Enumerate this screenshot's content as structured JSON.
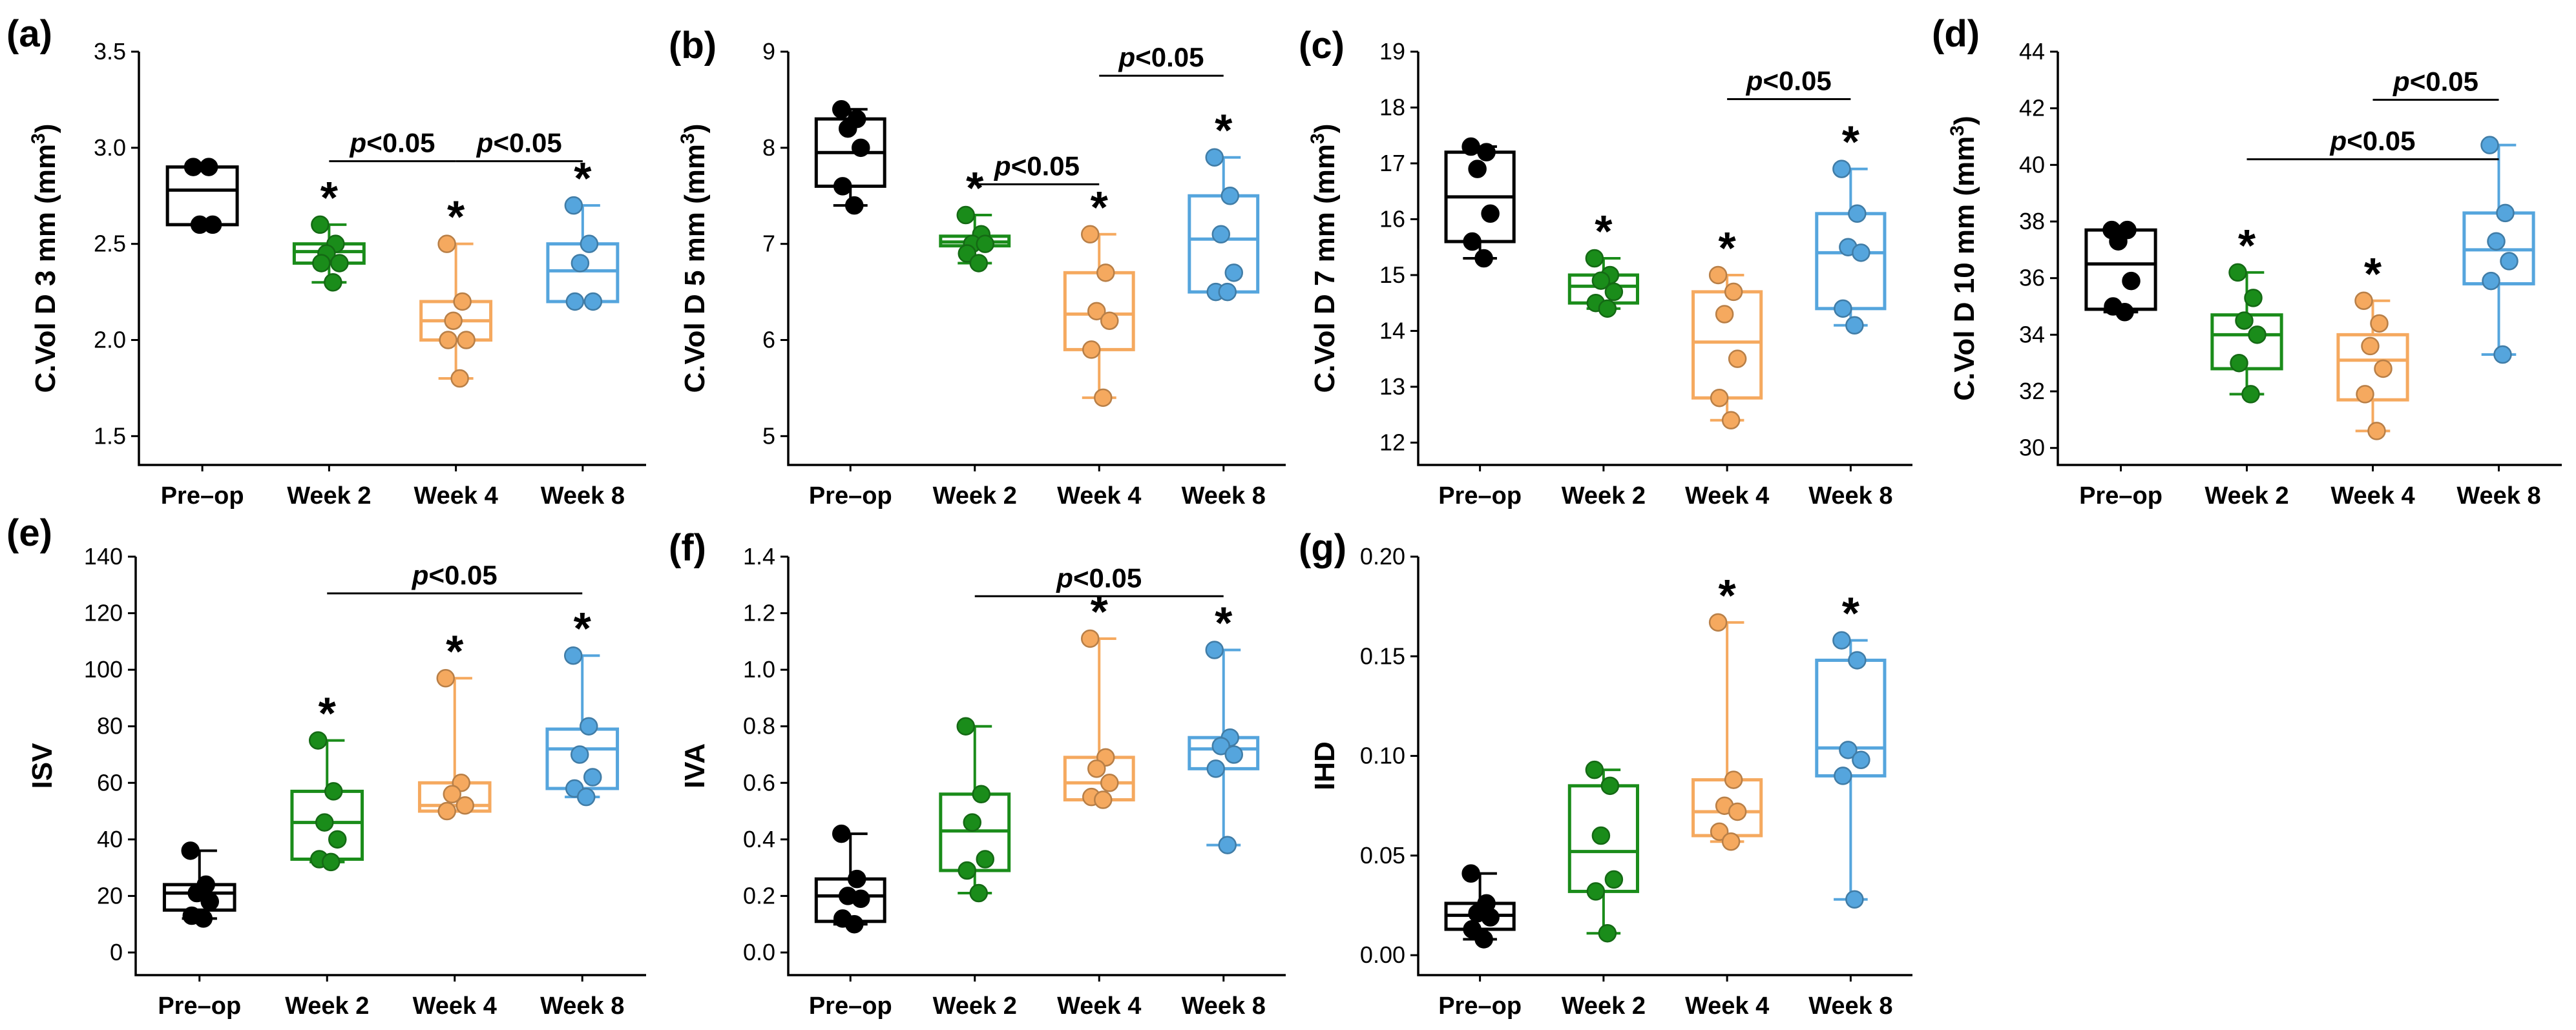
{
  "colors": {
    "Pre–op": "#000000",
    "Week 2": "#1a8c1a",
    "Week 4": "#f5a95f",
    "Week 8": "#55a5dd"
  },
  "chart_data": [
    {
      "id": "a",
      "panel_label": "(a)",
      "type": "box",
      "ylabel": "C.Vol D 3 mm (mm",
      "ylabel_sup": "3",
      "ylabel_end": ")",
      "ylim": [
        1.35,
        3.5
      ],
      "yticks": [
        "1.5",
        "2.0",
        "2.5",
        "3.0",
        "3.5"
      ],
      "categories": [
        "Pre–op",
        "Week 2",
        "Week 4",
        "Week 8"
      ],
      "series": [
        {
          "name": "Pre–op",
          "points": [
            2.9,
            2.9,
            2.6,
            2.6
          ],
          "q1": 2.6,
          "median": 2.78,
          "q3": 2.9,
          "min": 2.6,
          "max": 2.9,
          "star": ""
        },
        {
          "name": "Week 2",
          "points": [
            2.6,
            2.5,
            2.45,
            2.4,
            2.4,
            2.3
          ],
          "q1": 2.4,
          "median": 2.46,
          "q3": 2.5,
          "min": 2.3,
          "max": 2.6,
          "star": "*"
        },
        {
          "name": "Week 4",
          "points": [
            2.5,
            2.2,
            2.1,
            2.0,
            2.0,
            1.8
          ],
          "q1": 2.0,
          "median": 2.1,
          "q3": 2.2,
          "min": 1.8,
          "max": 2.5,
          "star": "*"
        },
        {
          "name": "Week 8",
          "points": [
            2.7,
            2.5,
            2.4,
            2.2,
            2.2
          ],
          "q1": 2.2,
          "median": 2.36,
          "q3": 2.5,
          "min": 2.2,
          "max": 2.7,
          "star": "*"
        }
      ],
      "significance": [
        {
          "from": 1,
          "to": 2,
          "label_p": "p",
          "label_rest": "<0.05",
          "y": 2.93
        },
        {
          "from": 2,
          "to": 3,
          "label_p": "p",
          "label_rest": "<0.05",
          "y": 2.93
        }
      ]
    },
    {
      "id": "b",
      "panel_label": "(b)",
      "type": "box",
      "ylabel": "C.Vol D 5 mm (mm",
      "ylabel_sup": "3",
      "ylabel_end": ")",
      "ylim": [
        4.7,
        9.0
      ],
      "yticks": [
        "5",
        "6",
        "7",
        "8",
        "9"
      ],
      "categories": [
        "Pre–op",
        "Week 2",
        "Week 4",
        "Week 8"
      ],
      "series": [
        {
          "name": "Pre–op",
          "points": [
            8.4,
            8.3,
            8.2,
            8.0,
            7.6,
            7.4
          ],
          "q1": 7.6,
          "median": 7.95,
          "q3": 8.3,
          "min": 7.4,
          "max": 8.4,
          "star": ""
        },
        {
          "name": "Week 2",
          "points": [
            7.3,
            7.1,
            7.0,
            7.0,
            6.9,
            6.8
          ],
          "q1": 6.98,
          "median": 7.02,
          "q3": 7.08,
          "min": 6.8,
          "max": 7.3,
          "star": "*"
        },
        {
          "name": "Week 4",
          "points": [
            7.1,
            6.7,
            6.3,
            6.2,
            5.9,
            5.4
          ],
          "q1": 5.9,
          "median": 6.27,
          "q3": 6.7,
          "min": 5.4,
          "max": 7.1,
          "star": "*"
        },
        {
          "name": "Week 8",
          "points": [
            7.9,
            7.5,
            7.1,
            6.7,
            6.5,
            6.5
          ],
          "q1": 6.5,
          "median": 7.05,
          "q3": 7.5,
          "min": 6.5,
          "max": 7.9,
          "star": "*"
        }
      ],
      "significance": [
        {
          "from": 1,
          "to": 2,
          "label_p": "p",
          "label_rest": "<0.05",
          "y": 7.62
        },
        {
          "from": 2,
          "to": 3,
          "label_p": "p",
          "label_rest": "<0.05",
          "y": 8.75
        }
      ]
    },
    {
      "id": "c",
      "panel_label": "(c)",
      "type": "box",
      "ylabel": "C.Vol D 7 mm (mm",
      "ylabel_sup": "3",
      "ylabel_end": ")",
      "ylim": [
        11.6,
        19.0
      ],
      "yticks": [
        "12",
        "13",
        "14",
        "15",
        "16",
        "17",
        "18",
        "19"
      ],
      "categories": [
        "Pre–op",
        "Week 2",
        "Week 4",
        "Week 8"
      ],
      "series": [
        {
          "name": "Pre–op",
          "points": [
            17.3,
            17.2,
            16.9,
            16.1,
            15.6,
            15.3
          ],
          "q1": 15.6,
          "median": 16.4,
          "q3": 17.2,
          "min": 15.3,
          "max": 17.3,
          "star": ""
        },
        {
          "name": "Week 2",
          "points": [
            15.3,
            15.0,
            14.9,
            14.7,
            14.5,
            14.4
          ],
          "q1": 14.5,
          "median": 14.8,
          "q3": 15.0,
          "min": 14.4,
          "max": 15.3,
          "star": "*"
        },
        {
          "name": "Week 4",
          "points": [
            15.0,
            14.7,
            14.3,
            13.5,
            12.8,
            12.4
          ],
          "q1": 12.8,
          "median": 13.8,
          "q3": 14.7,
          "min": 12.4,
          "max": 15.0,
          "star": "*"
        },
        {
          "name": "Week 8",
          "points": [
            16.9,
            16.1,
            15.5,
            15.4,
            14.4,
            14.1
          ],
          "q1": 14.4,
          "median": 15.4,
          "q3": 16.1,
          "min": 14.1,
          "max": 16.9,
          "star": "*"
        }
      ],
      "significance": [
        {
          "from": 2,
          "to": 3,
          "label_p": "p",
          "label_rest": "<0.05",
          "y": 18.15
        }
      ]
    },
    {
      "id": "d",
      "panel_label": "(d)",
      "type": "box",
      "ylabel": "C.Vol D 10 mm (mm",
      "ylabel_sup": "3",
      "ylabel_end": ")",
      "ylim": [
        29.4,
        44.0
      ],
      "yticks": [
        "30",
        "32",
        "34",
        "36",
        "38",
        "40",
        "42",
        "44"
      ],
      "categories": [
        "Pre–op",
        "Week 2",
        "Week 4",
        "Week 8"
      ],
      "series": [
        {
          "name": "Pre–op",
          "points": [
            37.7,
            37.7,
            37.3,
            35.9,
            35.0,
            34.8
          ],
          "q1": 34.9,
          "median": 36.5,
          "q3": 37.7,
          "min": 34.8,
          "max": 37.7,
          "star": ""
        },
        {
          "name": "Week 2",
          "points": [
            36.2,
            35.3,
            34.5,
            34.0,
            33.0,
            31.9
          ],
          "q1": 32.8,
          "median": 34.0,
          "q3": 34.7,
          "min": 31.9,
          "max": 36.2,
          "star": "*"
        },
        {
          "name": "Week 4",
          "points": [
            35.2,
            34.4,
            33.6,
            32.8,
            31.9,
            30.6
          ],
          "q1": 31.7,
          "median": 33.1,
          "q3": 34.0,
          "min": 30.6,
          "max": 35.2,
          "star": "*"
        },
        {
          "name": "Week 8",
          "points": [
            40.7,
            38.3,
            37.3,
            36.6,
            35.9,
            33.3
          ],
          "q1": 35.8,
          "median": 37.0,
          "q3": 38.3,
          "min": 33.3,
          "max": 40.7,
          "star": ""
        }
      ],
      "significance": [
        {
          "from": 2,
          "to": 3,
          "label_p": "p",
          "label_rest": "<0.05",
          "y": 42.3
        },
        {
          "from": 1,
          "to": 3,
          "label_p": "p",
          "label_rest": "<0.05",
          "y": 40.2
        }
      ]
    },
    {
      "id": "e",
      "panel_label": "(e)",
      "type": "box",
      "ylabel": "ISV",
      "ylabel_sup": "",
      "ylabel_end": "",
      "ylim": [
        -8,
        140
      ],
      "yticks": [
        "0",
        "20",
        "40",
        "60",
        "80",
        "100",
        "120",
        "140"
      ],
      "categories": [
        "Pre–op",
        "Week 2",
        "Week 4",
        "Week 8"
      ],
      "series": [
        {
          "name": "Pre–op",
          "points": [
            36,
            24,
            21,
            18,
            13,
            12
          ],
          "q1": 15,
          "median": 21,
          "q3": 24,
          "min": 12,
          "max": 36,
          "star": ""
        },
        {
          "name": "Week 2",
          "points": [
            75,
            57,
            46,
            40,
            33,
            32
          ],
          "q1": 33,
          "median": 46,
          "q3": 57,
          "min": 32,
          "max": 75,
          "star": "*"
        },
        {
          "name": "Week 4",
          "points": [
            97,
            60,
            56,
            52,
            50
          ],
          "q1": 50,
          "median": 52,
          "q3": 60,
          "min": 50,
          "max": 97,
          "star": "*"
        },
        {
          "name": "Week 8",
          "points": [
            105,
            80,
            70,
            62,
            58,
            55
          ],
          "q1": 58,
          "median": 72,
          "q3": 79,
          "min": 55,
          "max": 105,
          "star": "*"
        }
      ],
      "significance": [
        {
          "from": 1,
          "to": 3,
          "label_p": "p",
          "label_rest": "<0.05",
          "y": 127
        }
      ]
    },
    {
      "id": "f",
      "panel_label": "(f)",
      "type": "box",
      "ylabel": "IVA",
      "ylabel_sup": "",
      "ylabel_end": "",
      "ylim": [
        -0.08,
        1.4
      ],
      "yticks": [
        "0.0",
        "0.2",
        "0.4",
        "0.6",
        "0.8",
        "1.0",
        "1.2",
        "1.4"
      ],
      "categories": [
        "Pre–op",
        "Week 2",
        "Week 4",
        "Week 8"
      ],
      "series": [
        {
          "name": "Pre–op",
          "points": [
            0.42,
            0.26,
            0.2,
            0.19,
            0.12,
            0.1
          ],
          "q1": 0.11,
          "median": 0.2,
          "q3": 0.26,
          "min": 0.1,
          "max": 0.42,
          "star": ""
        },
        {
          "name": "Week 2",
          "points": [
            0.8,
            0.56,
            0.46,
            0.33,
            0.29,
            0.21
          ],
          "q1": 0.29,
          "median": 0.43,
          "q3": 0.56,
          "min": 0.21,
          "max": 0.8,
          "star": ""
        },
        {
          "name": "Week 4",
          "points": [
            1.11,
            0.69,
            0.65,
            0.6,
            0.55,
            0.54
          ],
          "q1": 0.54,
          "median": 0.6,
          "q3": 0.69,
          "min": 0.54,
          "max": 1.11,
          "star": "*"
        },
        {
          "name": "Week 8",
          "points": [
            1.07,
            0.76,
            0.73,
            0.7,
            0.65,
            0.38
          ],
          "q1": 0.65,
          "median": 0.72,
          "q3": 0.76,
          "min": 0.38,
          "max": 1.07,
          "star": "*"
        }
      ],
      "significance": [
        {
          "from": 1,
          "to": 3,
          "label_p": "p",
          "label_rest": "<0.05",
          "y": 1.26
        }
      ]
    },
    {
      "id": "g",
      "panel_label": "(g)",
      "type": "box",
      "ylabel": "IHD",
      "ylabel_sup": "",
      "ylabel_end": "",
      "ylim": [
        -0.01,
        0.2
      ],
      "yticks": [
        "0.00",
        "0.05",
        "0.10",
        "0.15",
        "0.20"
      ],
      "categories": [
        "Pre–op",
        "Week 2",
        "Week 4",
        "Week 8"
      ],
      "series": [
        {
          "name": "Pre–op",
          "points": [
            0.041,
            0.026,
            0.021,
            0.019,
            0.013,
            0.008
          ],
          "q1": 0.013,
          "median": 0.02,
          "q3": 0.026,
          "min": 0.008,
          "max": 0.041,
          "star": ""
        },
        {
          "name": "Week 2",
          "points": [
            0.093,
            0.085,
            0.06,
            0.038,
            0.032,
            0.011
          ],
          "q1": 0.032,
          "median": 0.052,
          "q3": 0.085,
          "min": 0.011,
          "max": 0.093,
          "star": ""
        },
        {
          "name": "Week 4",
          "points": [
            0.167,
            0.088,
            0.075,
            0.072,
            0.062,
            0.057
          ],
          "q1": 0.06,
          "median": 0.072,
          "q3": 0.088,
          "min": 0.057,
          "max": 0.167,
          "star": "*"
        },
        {
          "name": "Week 8",
          "points": [
            0.158,
            0.148,
            0.103,
            0.098,
            0.09,
            0.028
          ],
          "q1": 0.09,
          "median": 0.104,
          "q3": 0.148,
          "min": 0.028,
          "max": 0.158,
          "star": "*"
        }
      ],
      "significance": []
    }
  ]
}
